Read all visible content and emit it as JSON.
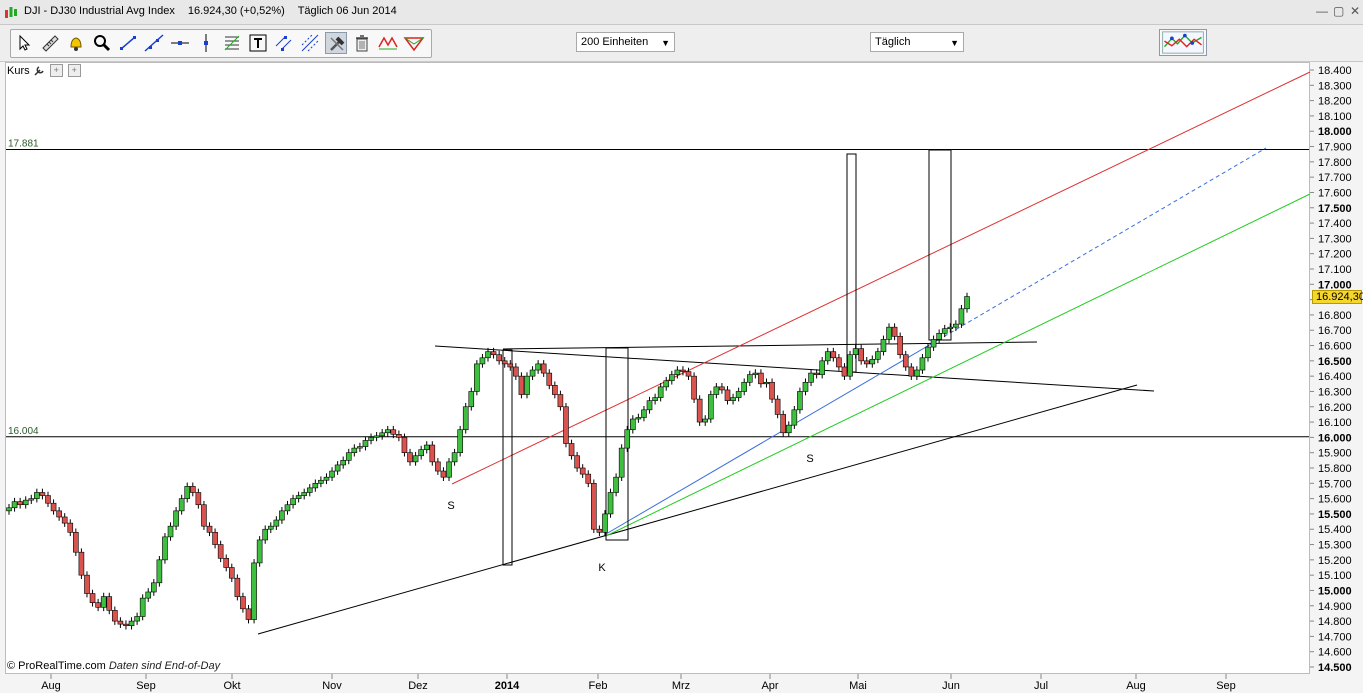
{
  "titlebar": {
    "symbol": "DJI - DJ30 Industrial Avg Index",
    "price": "16.924,30 (+0,52%)",
    "period": "Täglich  06 Jun 2014",
    "minimize": "—",
    "restore": "▢",
    "close": "✕"
  },
  "toolbar": {
    "units_select": "200 Einheiten",
    "period_select": "Täglich",
    "tools": [
      "pointer-icon",
      "ruler-icon",
      "alarm-icon",
      "zoom-icon",
      "trendline-icon",
      "line-extend-icon",
      "horizontal-line-icon",
      "vertical-line-icon",
      "fibonacci-icon",
      "text-icon",
      "parallel-icon",
      "channel-icon",
      "hammer-icon",
      "trash-icon",
      "pattern-icon",
      "fan-icon"
    ]
  },
  "legend": {
    "label": "Kurs",
    "btn1": "+",
    "btn2": "+"
  },
  "footer": {
    "brand": "© ProRealTime.com",
    "note": "Daten sind End-of-Day"
  },
  "current_price_tag": "16.924,30",
  "level_labels": {
    "upper": "17.881",
    "lower": "16.004"
  },
  "annotations": [
    "S",
    "K",
    "S"
  ],
  "chart_data": {
    "type": "candlestick",
    "title": "DJI - DJ30 Industrial Avg Index",
    "ylim": [
      14500,
      18450
    ],
    "y_ticks": [
      14500,
      14600,
      14700,
      14800,
      14900,
      15000,
      15100,
      15200,
      15300,
      15400,
      15500,
      15600,
      15700,
      15800,
      15900,
      16000,
      16100,
      16200,
      16300,
      16400,
      16500,
      16600,
      16700,
      16800,
      16900,
      17000,
      17100,
      17200,
      17300,
      17400,
      17500,
      17600,
      17700,
      17800,
      17900,
      18000,
      18100,
      18200,
      18300,
      18400
    ],
    "y_tick_labels": [
      "14.500",
      "14.600",
      "14.700",
      "14.800",
      "14.900",
      "15.000",
      "15.100",
      "15.200",
      "15.300",
      "15.400",
      "15.500",
      "15.600",
      "15.700",
      "15.800",
      "15.900",
      "16.000",
      "16.100",
      "16.200",
      "16.300",
      "16.400",
      "16.500",
      "16.600",
      "16.700",
      "16.800",
      "16.900",
      "17.000",
      "17.100",
      "17.200",
      "17.300",
      "17.400",
      "17.500",
      "17.600",
      "17.700",
      "17.800",
      "17.900",
      "18.000",
      "18.100",
      "18.200",
      "18.300",
      "18.400"
    ],
    "y_major": [
      "14.500",
      "15.000",
      "15.500",
      "16.000",
      "16.500",
      "17.000",
      "17.500",
      "18.000"
    ],
    "x_labels": [
      "Aug",
      "Sep",
      "Okt",
      "Nov",
      "Dez",
      "2014",
      "Feb",
      "Mrz",
      "Apr",
      "Mai",
      "Jun",
      "Jul",
      "Aug",
      "Sep"
    ],
    "x_year_label": "2014",
    "horizontal_levels": [
      17881,
      16004
    ],
    "close_path": [
      [
        15540,
        15580,
        15560,
        15590,
        15600,
        15640,
        15620,
        15570,
        15520,
        15480,
        15440,
        15380,
        15250,
        15100,
        14980,
        14920,
        14890,
        14960,
        14870,
        14800,
        14780,
        14770,
        14800,
        14830,
        14950,
        14990,
        15050,
        15200,
        15350,
        15420,
        15520,
        15600,
        15680,
        15640,
        15560,
        15420,
        15380,
        15300,
        15210,
        15150,
        15080,
        14960,
        14880,
        14810,
        15180,
        15330,
        15400,
        15420,
        15460,
        15520,
        15560,
        15600,
        15620,
        15640,
        15670,
        15700,
        15720,
        15740,
        15780,
        15820,
        15850,
        15900,
        15930,
        15940,
        15980,
        16000,
        16010,
        16030,
        16050,
        16020,
        16000,
        15900,
        15840,
        15880,
        15920,
        15950,
        15840,
        15780,
        15740,
        15840,
        15900,
        16050,
        16200,
        16300,
        16480,
        16520,
        16560,
        16540,
        16500,
        16480,
        16460,
        16400,
        16280,
        16400,
        16440,
        16480,
        16420,
        16340,
        16280,
        16200,
        15960,
        15880,
        15800,
        15760,
        15700,
        15400,
        15380,
        15500,
        15640,
        15740,
        15930,
        16050,
        16120,
        16130,
        16180,
        16240,
        16260,
        16330,
        16370,
        16410,
        16440,
        16430,
        16400,
        16250,
        16100,
        16120,
        16280,
        16330,
        16310,
        16240,
        16260,
        16300,
        16360,
        16410,
        16420,
        16350,
        16360,
        16250,
        16150,
        16030,
        16080,
        16180,
        16300,
        16360,
        16420,
        16410,
        16500,
        16560,
        16520,
        16460,
        16400,
        16540,
        16580,
        16500,
        16480,
        16510,
        16560,
        16640,
        16720,
        16660,
        16540,
        16460,
        16400,
        16440,
        16520,
        16590,
        16640,
        16680,
        16710,
        16720,
        16740,
        16840,
        16920
      ]
    ]
  }
}
